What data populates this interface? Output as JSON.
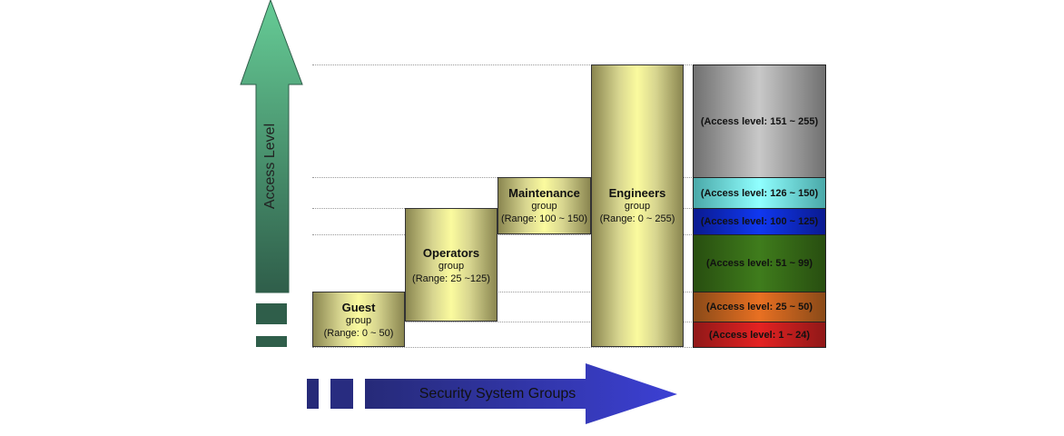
{
  "y_axis_label": "Access Level",
  "x_axis_label": "Security System Groups",
  "groups": [
    {
      "name": "Guest",
      "sub": "group",
      "range": "(Range: 0 ~ 50)"
    },
    {
      "name": "Operators",
      "sub": "group",
      "range": "(Range: 25 ~125)"
    },
    {
      "name": "Maintenance",
      "sub": "group",
      "range": "(Range: 100 ~ 150)"
    },
    {
      "name": "Engineers",
      "sub": "group",
      "range": "(Range: 0 ~ 255)"
    }
  ],
  "levels": [
    {
      "label": "(Access level: 151 ~ 255)",
      "color": "#a0a0a0"
    },
    {
      "label": "(Access level: 126 ~ 150)",
      "color": "#80e8e8"
    },
    {
      "label": "(Access level: 100 ~ 125)",
      "color": "#1030e0"
    },
    {
      "label": "(Access level: 51 ~ 99)",
      "color": "#3a7018"
    },
    {
      "label": "(Access level: 25 ~ 50)",
      "color": "#e06a20"
    },
    {
      "label": "(Access level: 1 ~ 24)",
      "color": "#d82020"
    }
  ]
}
